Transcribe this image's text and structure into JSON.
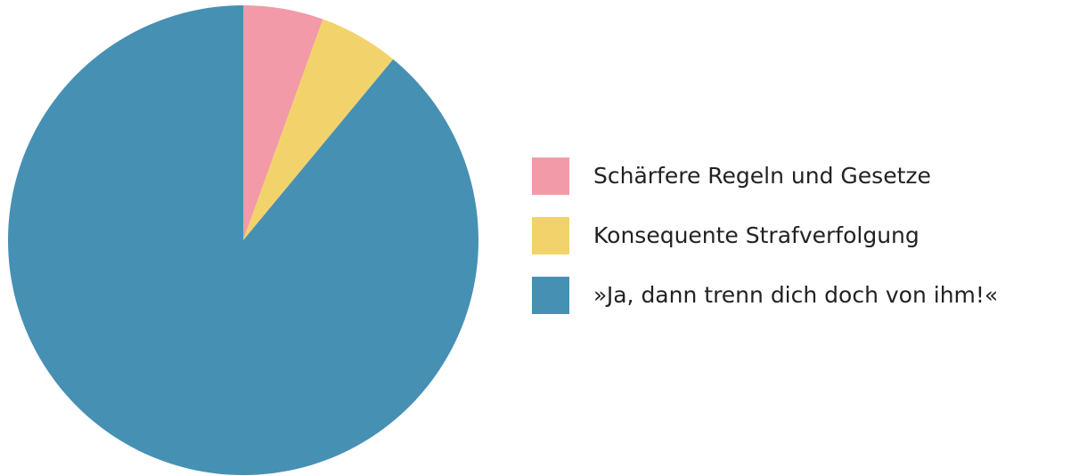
{
  "chart_data": {
    "type": "pie",
    "categories": [
      "Schärfere Regeln und Gesetze",
      "Konsequente Strafverfolgung",
      "»Ja, dann trenn dich doch von ihm!«"
    ],
    "values": [
      5.5,
      5.5,
      89
    ],
    "colors": [
      "#f29aa8",
      "#f2d36b",
      "#4690b4"
    ],
    "legend": "right"
  }
}
